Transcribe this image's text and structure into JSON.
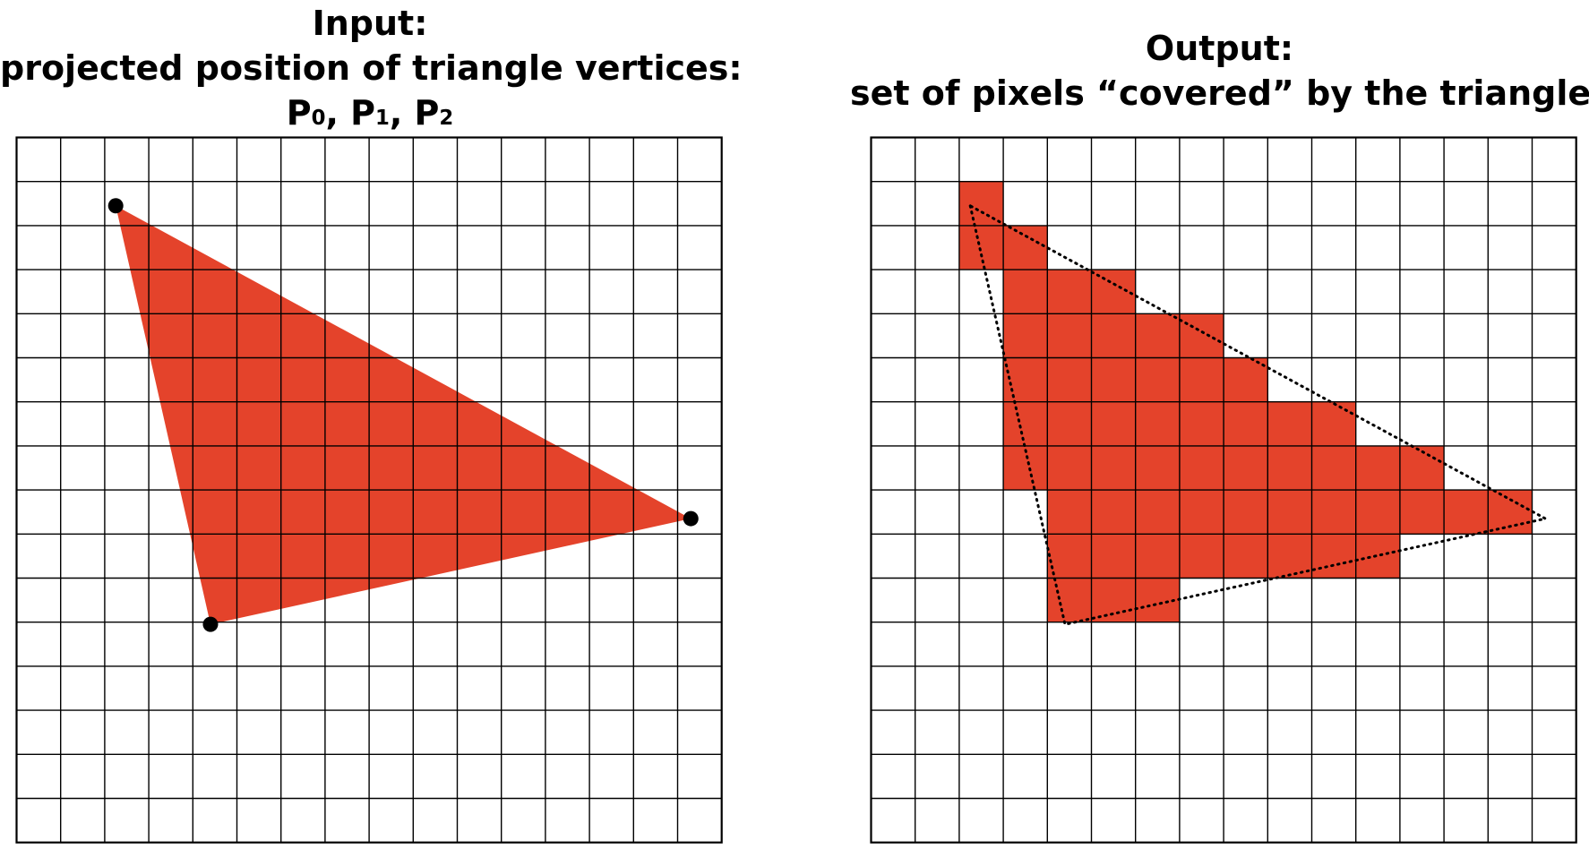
{
  "left": {
    "title_line1": "Input:",
    "title_line2": "projected position of triangle vertices:",
    "vertex_labels": [
      {
        "letter": "P",
        "sub": "0",
        "sep": ", "
      },
      {
        "letter": "P",
        "sub": "1",
        "sep": ", "
      },
      {
        "letter": "P",
        "sub": "2",
        "sep": ""
      }
    ]
  },
  "right": {
    "title_line1": "Output:",
    "title_line2": "set of pixels “covered” by the triangle"
  },
  "grid": {
    "columns": 16,
    "rows": 16
  },
  "triangle": {
    "vertices": [
      [
        2.25,
        1.55
      ],
      [
        4.4,
        11.05
      ],
      [
        15.3,
        8.65
      ]
    ],
    "fill_color": "#e4432b",
    "outline_color": "#000000"
  },
  "covered_pixels": [
    [
      2,
      1
    ],
    [
      2,
      2
    ],
    [
      3,
      2
    ],
    [
      3,
      3
    ],
    [
      4,
      3
    ],
    [
      5,
      3
    ],
    [
      3,
      4
    ],
    [
      4,
      4
    ],
    [
      5,
      4
    ],
    [
      6,
      4
    ],
    [
      7,
      4
    ],
    [
      3,
      5
    ],
    [
      4,
      5
    ],
    [
      5,
      5
    ],
    [
      6,
      5
    ],
    [
      7,
      5
    ],
    [
      8,
      5
    ],
    [
      3,
      6
    ],
    [
      4,
      6
    ],
    [
      5,
      6
    ],
    [
      6,
      6
    ],
    [
      7,
      6
    ],
    [
      8,
      6
    ],
    [
      9,
      6
    ],
    [
      10,
      6
    ],
    [
      3,
      7
    ],
    [
      4,
      7
    ],
    [
      5,
      7
    ],
    [
      6,
      7
    ],
    [
      7,
      7
    ],
    [
      8,
      7
    ],
    [
      9,
      7
    ],
    [
      10,
      7
    ],
    [
      11,
      7
    ],
    [
      12,
      7
    ],
    [
      4,
      8
    ],
    [
      5,
      8
    ],
    [
      6,
      8
    ],
    [
      7,
      8
    ],
    [
      8,
      8
    ],
    [
      9,
      8
    ],
    [
      10,
      8
    ],
    [
      11,
      8
    ],
    [
      12,
      8
    ],
    [
      13,
      8
    ],
    [
      14,
      8
    ],
    [
      4,
      9
    ],
    [
      5,
      9
    ],
    [
      6,
      9
    ],
    [
      7,
      9
    ],
    [
      8,
      9
    ],
    [
      9,
      9
    ],
    [
      10,
      9
    ],
    [
      11,
      9
    ],
    [
      4,
      10
    ],
    [
      5,
      10
    ],
    [
      6,
      10
    ]
  ]
}
